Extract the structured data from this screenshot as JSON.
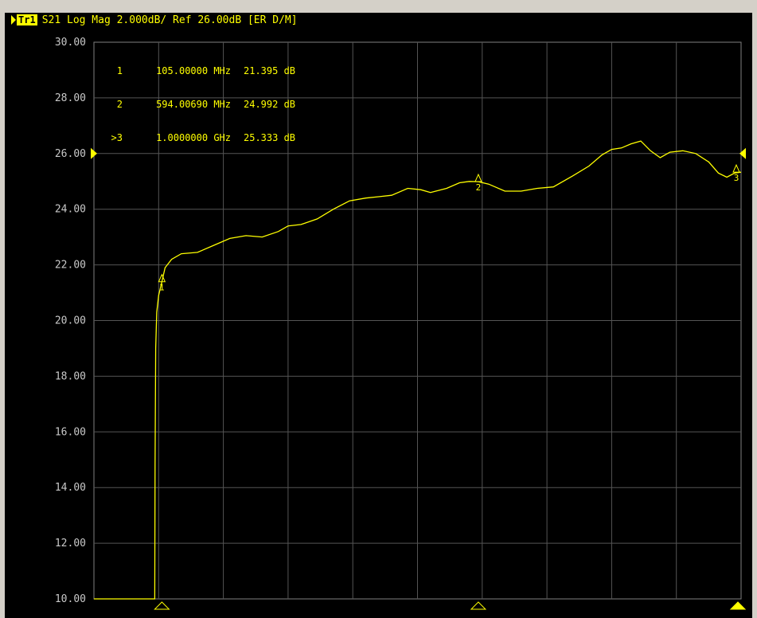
{
  "header": {
    "trace_label": "Tr1",
    "measurement": "S21 Log Mag 2.000dB/ Ref 26.00dB [ER D/M]"
  },
  "markers_table": [
    {
      "id": "1",
      "freq": "105.00000 MHz",
      "value": "21.395 dB"
    },
    {
      "id": "2",
      "freq": "594.00690 MHz",
      "value": "24.992 dB"
    },
    {
      "id": ">3",
      "freq": "1.0000000 GHz",
      "value": "25.333 dB"
    }
  ],
  "colors": {
    "background": "#000000",
    "trace": "#ffff00",
    "grid": "#555555",
    "axis_text": "#c8c8c8"
  },
  "chart_data": {
    "type": "line",
    "title": "",
    "xlabel": "",
    "ylabel": "",
    "ylim": [
      10,
      30
    ],
    "xlim": [
      0,
      1000
    ],
    "x_unit": "MHz",
    "reference_level": 26.0,
    "y_ticks": [
      "30.00",
      "28.00",
      "26.00",
      "24.00",
      "22.00",
      "20.00",
      "18.00",
      "16.00",
      "14.00",
      "12.00",
      "10.00"
    ],
    "grid": true,
    "series": [
      {
        "values": [
          [
            0,
            10.0
          ],
          [
            92,
            10.0
          ],
          [
            94,
            10.0
          ],
          [
            94.5,
            14.8
          ],
          [
            95.5,
            19.0
          ],
          [
            97,
            20.3
          ],
          [
            100,
            20.9
          ],
          [
            105,
            21.4
          ],
          [
            110,
            21.9
          ],
          [
            120,
            22.2
          ],
          [
            135,
            22.4
          ],
          [
            160,
            22.45
          ],
          [
            185,
            22.7
          ],
          [
            210,
            22.95
          ],
          [
            235,
            23.05
          ],
          [
            260,
            23.0
          ],
          [
            285,
            23.2
          ],
          [
            300,
            23.4
          ],
          [
            320,
            23.45
          ],
          [
            345,
            23.65
          ],
          [
            370,
            24.0
          ],
          [
            395,
            24.3
          ],
          [
            420,
            24.4
          ],
          [
            440,
            24.45
          ],
          [
            460,
            24.5
          ],
          [
            485,
            24.75
          ],
          [
            505,
            24.7
          ],
          [
            520,
            24.6
          ],
          [
            545,
            24.75
          ],
          [
            565,
            24.95
          ],
          [
            580,
            25.0
          ],
          [
            594,
            24.99
          ],
          [
            610,
            24.9
          ],
          [
            635,
            24.65
          ],
          [
            660,
            24.65
          ],
          [
            685,
            24.75
          ],
          [
            710,
            24.8
          ],
          [
            740,
            25.2
          ],
          [
            765,
            25.55
          ],
          [
            785,
            25.95
          ],
          [
            800,
            26.15
          ],
          [
            815,
            26.2
          ],
          [
            830,
            26.35
          ],
          [
            845,
            26.45
          ],
          [
            860,
            26.1
          ],
          [
            875,
            25.85
          ],
          [
            890,
            26.05
          ],
          [
            910,
            26.1
          ],
          [
            930,
            26.0
          ],
          [
            950,
            25.7
          ],
          [
            965,
            25.3
          ],
          [
            978,
            25.15
          ],
          [
            990,
            25.3
          ],
          [
            1000,
            25.33
          ]
        ]
      }
    ],
    "markers": [
      {
        "label": "1",
        "x": 105,
        "y": 21.395
      },
      {
        "label": "2",
        "x": 594.0069,
        "y": 24.992
      },
      {
        "label": "3",
        "x": 1000,
        "y": 25.333
      }
    ]
  }
}
